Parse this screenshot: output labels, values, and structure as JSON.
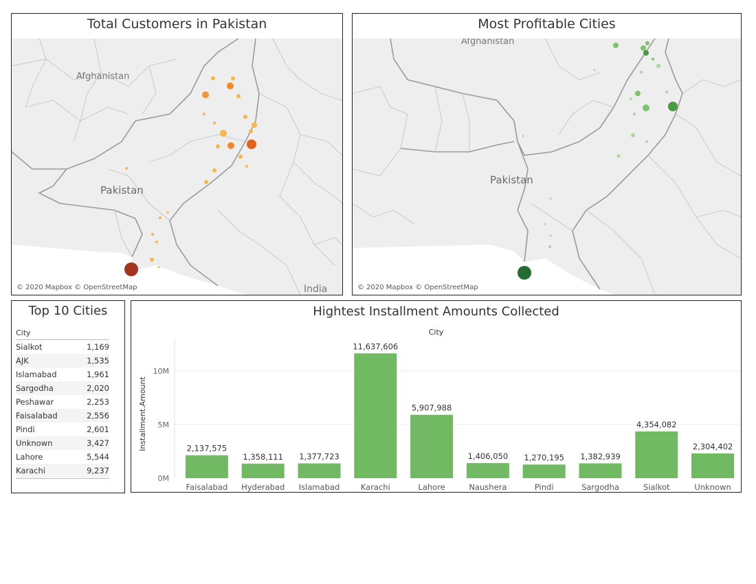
{
  "maps": {
    "customers": {
      "title": "Total Customers in Pakistan",
      "credit": "© 2020 Mapbox © OpenStreetMap",
      "labels": {
        "afghanistan": "Afghanistan",
        "pakistan": "Pakistan",
        "india": "India"
      },
      "colors": {
        "low": "#f6b64a",
        "mid": "#f28a2a",
        "high": "#e3601a",
        "max": "#a33520"
      }
    },
    "profit": {
      "title": "Most Profitable Cities",
      "credit": "© 2020 Mapbox © OpenStreetMap",
      "labels": {
        "afghanistan": "Afghanistan",
        "pakistan": "Pakistan"
      },
      "colors": {
        "low": "#a6d99a",
        "mid": "#7cc36d",
        "high": "#4a9a45",
        "max": "#276b34"
      }
    }
  },
  "top_cities": {
    "title": "Top 10 Cities",
    "column_header": "City",
    "rows": [
      {
        "city": "Sialkot",
        "value": "1,169"
      },
      {
        "city": "AJK",
        "value": "1,535"
      },
      {
        "city": "Islamabad",
        "value": "1,961"
      },
      {
        "city": "Sargodha",
        "value": "2,020"
      },
      {
        "city": "Peshawar",
        "value": "2,253"
      },
      {
        "city": "Faisalabad",
        "value": "2,556"
      },
      {
        "city": "Pindi",
        "value": "2,601"
      },
      {
        "city": "Unknown",
        "value": "3,427"
      },
      {
        "city": "Lahore",
        "value": "5,544"
      },
      {
        "city": "Karachi",
        "value": "9,237"
      }
    ]
  },
  "chart_data": {
    "type": "bar",
    "title": "Hightest Installment Amounts Collected",
    "xlabel": "City",
    "ylabel": "Installment.Amount",
    "categories": [
      "Faisalabad",
      "Hyderabad",
      "Islamabad",
      "Karachi",
      "Lahore",
      "Naushera",
      "Pindi",
      "Sargodha",
      "Sialkot",
      "Unknown"
    ],
    "values": [
      2137575,
      1358111,
      1377723,
      11637606,
      5907988,
      1406050,
      1270195,
      1382939,
      4354082,
      2304402
    ],
    "data_labels": [
      "2,137,575",
      "1,358,111",
      "1,377,723",
      "11,637,606",
      "5,907,988",
      "1,406,050",
      "1,270,195",
      "1,382,939",
      "4,354,082",
      "2,304,402"
    ],
    "y_ticks": [
      {
        "value": 0,
        "label": "0M"
      },
      {
        "value": 5000000,
        "label": "5M"
      },
      {
        "value": 10000000,
        "label": "10M"
      }
    ],
    "ylim": [
      0,
      13000000
    ],
    "bar_color": "#71b963",
    "grid": true
  }
}
